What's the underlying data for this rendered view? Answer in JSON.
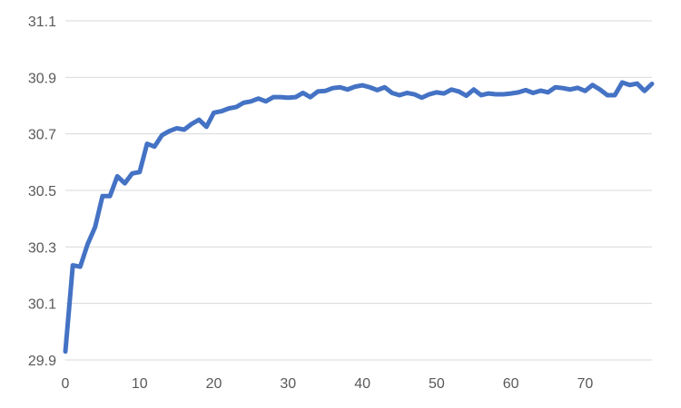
{
  "chart_data": {
    "type": "line",
    "title": "",
    "xlabel": "",
    "ylabel": "",
    "xlim": [
      0,
      79
    ],
    "ylim": [
      29.9,
      31.1
    ],
    "xticks": [
      0,
      10,
      20,
      30,
      40,
      50,
      60,
      70
    ],
    "xtick_labels": [
      "0",
      "10",
      "20",
      "30",
      "40",
      "50",
      "60",
      "70"
    ],
    "yticks": [
      29.9,
      30.1,
      30.3,
      30.5,
      30.7,
      30.9,
      31.1
    ],
    "ytick_labels": [
      "29.9",
      "30.1",
      "30.3",
      "30.5",
      "30.7",
      "30.9",
      "31.1"
    ],
    "grid": "horizontal",
    "legend": "none",
    "series_color": "#4472C4",
    "grid_color": "#D9D9D9",
    "series": [
      {
        "name": "",
        "x": [
          0,
          1,
          2,
          3,
          4,
          5,
          6,
          7,
          8,
          9,
          10,
          11,
          12,
          13,
          14,
          15,
          16,
          17,
          18,
          19,
          20,
          21,
          22,
          23,
          24,
          25,
          26,
          27,
          28,
          29,
          30,
          31,
          32,
          33,
          34,
          35,
          36,
          37,
          38,
          39,
          40,
          41,
          42,
          43,
          44,
          45,
          46,
          47,
          48,
          49,
          50,
          51,
          52,
          53,
          54,
          55,
          56,
          57,
          58,
          59,
          60,
          61,
          62,
          63,
          64,
          65,
          66,
          67,
          68,
          69,
          70,
          71,
          72,
          73,
          74,
          75,
          76,
          77,
          78,
          79
        ],
        "values": [
          29.93,
          30.235,
          30.23,
          30.31,
          30.37,
          30.48,
          30.48,
          30.55,
          30.525,
          30.56,
          30.565,
          30.665,
          30.655,
          30.695,
          30.71,
          30.72,
          30.715,
          30.735,
          30.75,
          30.725,
          30.775,
          30.78,
          30.79,
          30.795,
          30.81,
          30.815,
          30.825,
          30.815,
          30.83,
          30.83,
          30.828,
          30.83,
          30.845,
          30.83,
          30.85,
          30.852,
          30.862,
          30.865,
          30.857,
          30.867,
          30.872,
          30.865,
          30.855,
          30.865,
          30.845,
          30.837,
          30.845,
          30.84,
          30.828,
          30.84,
          30.847,
          30.843,
          30.857,
          30.85,
          30.835,
          30.857,
          30.837,
          30.843,
          30.84,
          30.84,
          30.843,
          30.847,
          30.855,
          30.845,
          30.853,
          30.847,
          30.865,
          30.862,
          30.857,
          30.863,
          30.852,
          30.873,
          30.857,
          30.837,
          30.837,
          30.882,
          30.873,
          30.878,
          30.852,
          30.877
        ]
      }
    ]
  }
}
